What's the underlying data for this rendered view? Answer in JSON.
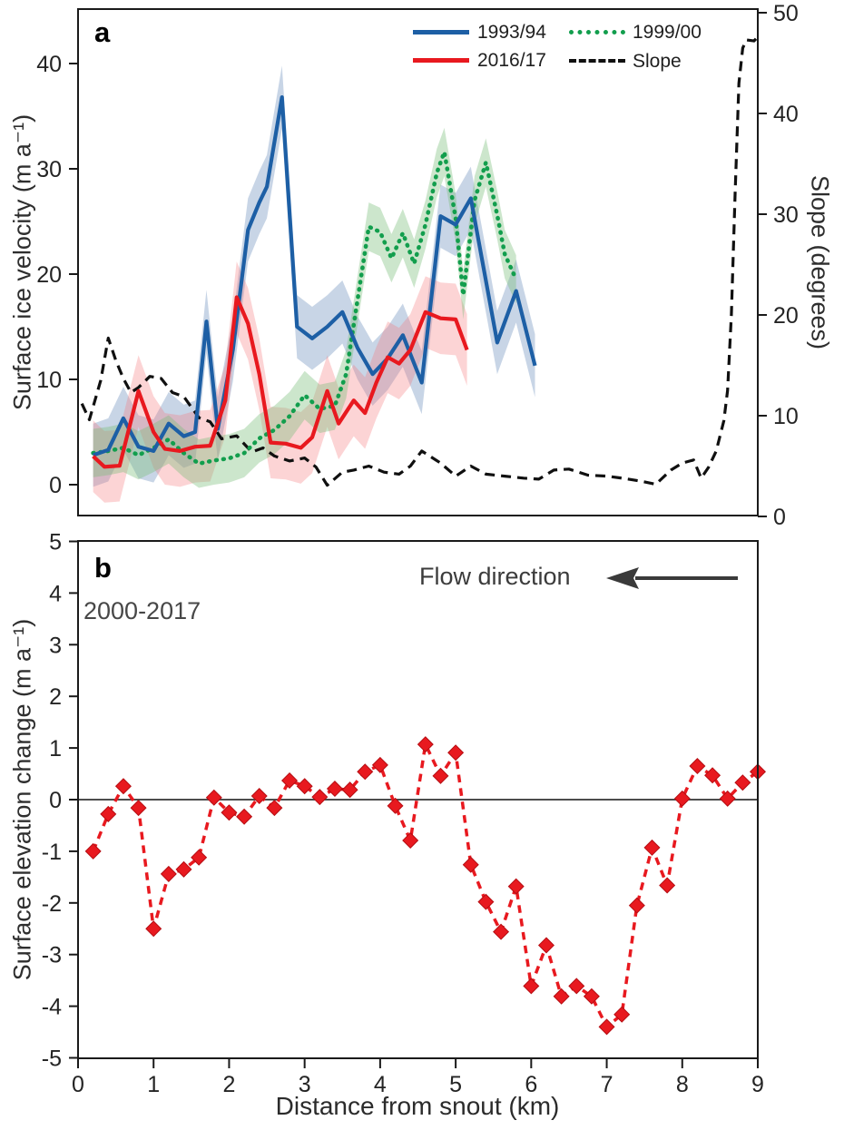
{
  "chart_data": [
    {
      "panel": "a",
      "type": "line",
      "panel_label": "a",
      "ylabel": "Surface ice velocity (m a⁻¹)",
      "ylabel_right": "Slope (degrees)",
      "xlim": [
        0,
        9
      ],
      "ylim_left": [
        0,
        40
      ],
      "ylim_right": [
        0,
        50
      ],
      "left_ticks": [
        0,
        10,
        20,
        30,
        40
      ],
      "right_ticks": [
        0,
        10,
        20,
        30,
        40,
        50
      ],
      "grid": false,
      "legend_position": "top-right",
      "series": [
        {
          "name": "1993/94",
          "axis": "left",
          "style": "solid",
          "color": "#1d5fa5",
          "band_color": "rgba(110,145,190,0.38)",
          "band_halfwidth": 3.0,
          "x": [
            0.2,
            0.4,
            0.6,
            0.8,
            1.0,
            1.2,
            1.4,
            1.55,
            1.7,
            1.85,
            2.05,
            2.25,
            2.4,
            2.5,
            2.7,
            2.9,
            3.1,
            3.3,
            3.5,
            3.7,
            3.9,
            4.1,
            4.3,
            4.55,
            4.8,
            5.0,
            5.2,
            5.55,
            5.8,
            6.05
          ],
          "values": [
            2.8,
            3.3,
            6.3,
            3.6,
            3.2,
            5.8,
            4.6,
            5.0,
            15.5,
            5.3,
            12.8,
            24.2,
            26.8,
            28.3,
            36.8,
            15.0,
            13.9,
            15.0,
            16.4,
            13.0,
            10.5,
            12.0,
            14.2,
            9.7,
            25.5,
            24.7,
            27.2,
            13.5,
            18.4,
            11.3
          ]
        },
        {
          "name": "2016/17",
          "axis": "left",
          "style": "solid",
          "color": "#e8191f",
          "band_color": "rgba(245,120,125,0.32)",
          "band_halfwidth": 3.4,
          "x": [
            0.2,
            0.35,
            0.55,
            0.8,
            1.0,
            1.15,
            1.35,
            1.55,
            1.75,
            1.95,
            2.1,
            2.25,
            2.4,
            2.55,
            2.75,
            2.95,
            3.1,
            3.3,
            3.45,
            3.65,
            3.8,
            3.95,
            4.1,
            4.25,
            4.4,
            4.6,
            4.8,
            5.0,
            5.15
          ],
          "values": [
            2.7,
            1.7,
            1.8,
            8.9,
            5.0,
            3.4,
            3.2,
            3.6,
            3.7,
            8.0,
            17.8,
            15.3,
            10.5,
            4.0,
            3.9,
            3.5,
            4.5,
            8.9,
            5.8,
            8.0,
            6.8,
            9.7,
            12.1,
            11.5,
            12.8,
            16.4,
            15.8,
            15.7,
            12.8
          ]
        },
        {
          "name": "1999/00",
          "axis": "left",
          "style": "dotted",
          "color": "#129e4d",
          "band_color": "rgba(120,190,120,0.38)",
          "band_halfwidth": 2.3,
          "x": [
            0.2,
            0.4,
            0.6,
            0.8,
            1.0,
            1.2,
            1.4,
            1.6,
            1.8,
            2.0,
            2.2,
            2.4,
            2.6,
            2.8,
            3.0,
            3.2,
            3.4,
            3.55,
            3.7,
            3.85,
            4.0,
            4.15,
            4.3,
            4.45,
            4.6,
            4.75,
            4.85,
            5.0,
            5.1,
            5.25,
            5.4,
            5.55,
            5.65,
            5.8
          ],
          "values": [
            3.0,
            3.2,
            3.5,
            2.8,
            3.5,
            4.3,
            3.0,
            2.0,
            2.3,
            2.5,
            3.0,
            4.4,
            5.2,
            6.5,
            8.5,
            7.2,
            7.5,
            10.5,
            17.5,
            24.5,
            24.0,
            21.5,
            23.9,
            21.0,
            24.7,
            29.6,
            31.6,
            25.3,
            18.0,
            27.0,
            30.6,
            25.6,
            21.9,
            19.5
          ]
        },
        {
          "name": "Slope",
          "axis": "right",
          "style": "dashed",
          "color": "#101010",
          "band_halfwidth": 0,
          "x": [
            0.05,
            0.15,
            0.3,
            0.4,
            0.5,
            0.6,
            0.7,
            0.8,
            0.95,
            1.1,
            1.25,
            1.4,
            1.6,
            1.75,
            1.9,
            2.1,
            2.3,
            2.45,
            2.6,
            2.8,
            3.0,
            3.15,
            3.3,
            3.5,
            3.65,
            3.85,
            4.05,
            4.25,
            4.4,
            4.55,
            4.8,
            5.0,
            5.2,
            5.4,
            5.65,
            5.9,
            6.1,
            6.3,
            6.5,
            6.75,
            7.0,
            7.2,
            7.45,
            7.65,
            7.85,
            8.0,
            8.15,
            8.25,
            8.35,
            8.45,
            8.55,
            8.6,
            8.65,
            8.7,
            8.75,
            8.8,
            8.85,
            8.95,
            9.0
          ],
          "values": [
            11.2,
            9.6,
            13.5,
            17.7,
            15.5,
            13.7,
            12.3,
            12.8,
            13.9,
            13.7,
            12.3,
            11.9,
            9.8,
            9.4,
            7.7,
            8.0,
            6.4,
            6.8,
            6.0,
            5.5,
            5.8,
            4.9,
            3.1,
            4.4,
            4.6,
            5.0,
            4.4,
            4.2,
            5.0,
            6.5,
            5.3,
            4.0,
            5.0,
            4.2,
            4.0,
            3.8,
            3.7,
            4.6,
            4.7,
            4.1,
            4.0,
            3.8,
            3.5,
            3.2,
            4.6,
            5.3,
            5.6,
            3.8,
            4.9,
            6.5,
            9.5,
            12.5,
            20.0,
            32.0,
            43.0,
            46.5,
            47.3,
            47.2,
            47.6
          ]
        }
      ]
    },
    {
      "panel": "b",
      "type": "line",
      "panel_label": "b",
      "annotation": "2000-2017",
      "flow_label": "Flow direction",
      "xlabel": "Distance from snout (km)",
      "ylabel": "Surface elevation change (m a⁻¹)",
      "xlim": [
        0,
        9
      ],
      "ylim": [
        -5,
        5
      ],
      "x_ticks": [
        0,
        1,
        2,
        3,
        4,
        5,
        6,
        7,
        8,
        9
      ],
      "y_ticks": [
        -5,
        -4,
        -3,
        -2,
        -1,
        0,
        1,
        2,
        3,
        4,
        5
      ],
      "grid": false,
      "zero_line": true,
      "series": [
        {
          "name": "2000-2017",
          "style": "dashed",
          "marker": "diamond",
          "color": "#e8191f",
          "x": [
            0.2,
            0.4,
            0.6,
            0.8,
            1.0,
            1.2,
            1.4,
            1.6,
            1.8,
            2.0,
            2.2,
            2.4,
            2.6,
            2.8,
            3.0,
            3.2,
            3.4,
            3.6,
            3.8,
            4.0,
            4.2,
            4.4,
            4.6,
            4.8,
            5.0,
            5.2,
            5.4,
            5.6,
            5.8,
            6.0,
            6.2,
            6.4,
            6.6,
            6.8,
            7.0,
            7.2,
            7.4,
            7.6,
            7.8,
            8.0,
            8.2,
            8.4,
            8.6,
            8.8,
            9.0
          ],
          "values": [
            -1.0,
            -0.28,
            0.26,
            -0.16,
            -2.5,
            -1.44,
            -1.35,
            -1.12,
            0.04,
            -0.25,
            -0.33,
            0.07,
            -0.16,
            0.37,
            0.26,
            0.05,
            0.21,
            0.19,
            0.54,
            0.67,
            -0.12,
            -0.79,
            1.07,
            0.46,
            0.91,
            -1.26,
            -1.98,
            -2.56,
            -1.68,
            -3.61,
            -2.82,
            -3.81,
            -3.61,
            -3.81,
            -4.4,
            -4.16,
            -2.05,
            -0.93,
            -1.66,
            0.02,
            0.65,
            0.47,
            0.02,
            0.33,
            0.54
          ]
        }
      ]
    }
  ],
  "colors": {
    "border": "#1a1a1a",
    "tick_text": "#242424",
    "zero_line": "#4d4d4d",
    "arrow": "#3a3a3a"
  }
}
